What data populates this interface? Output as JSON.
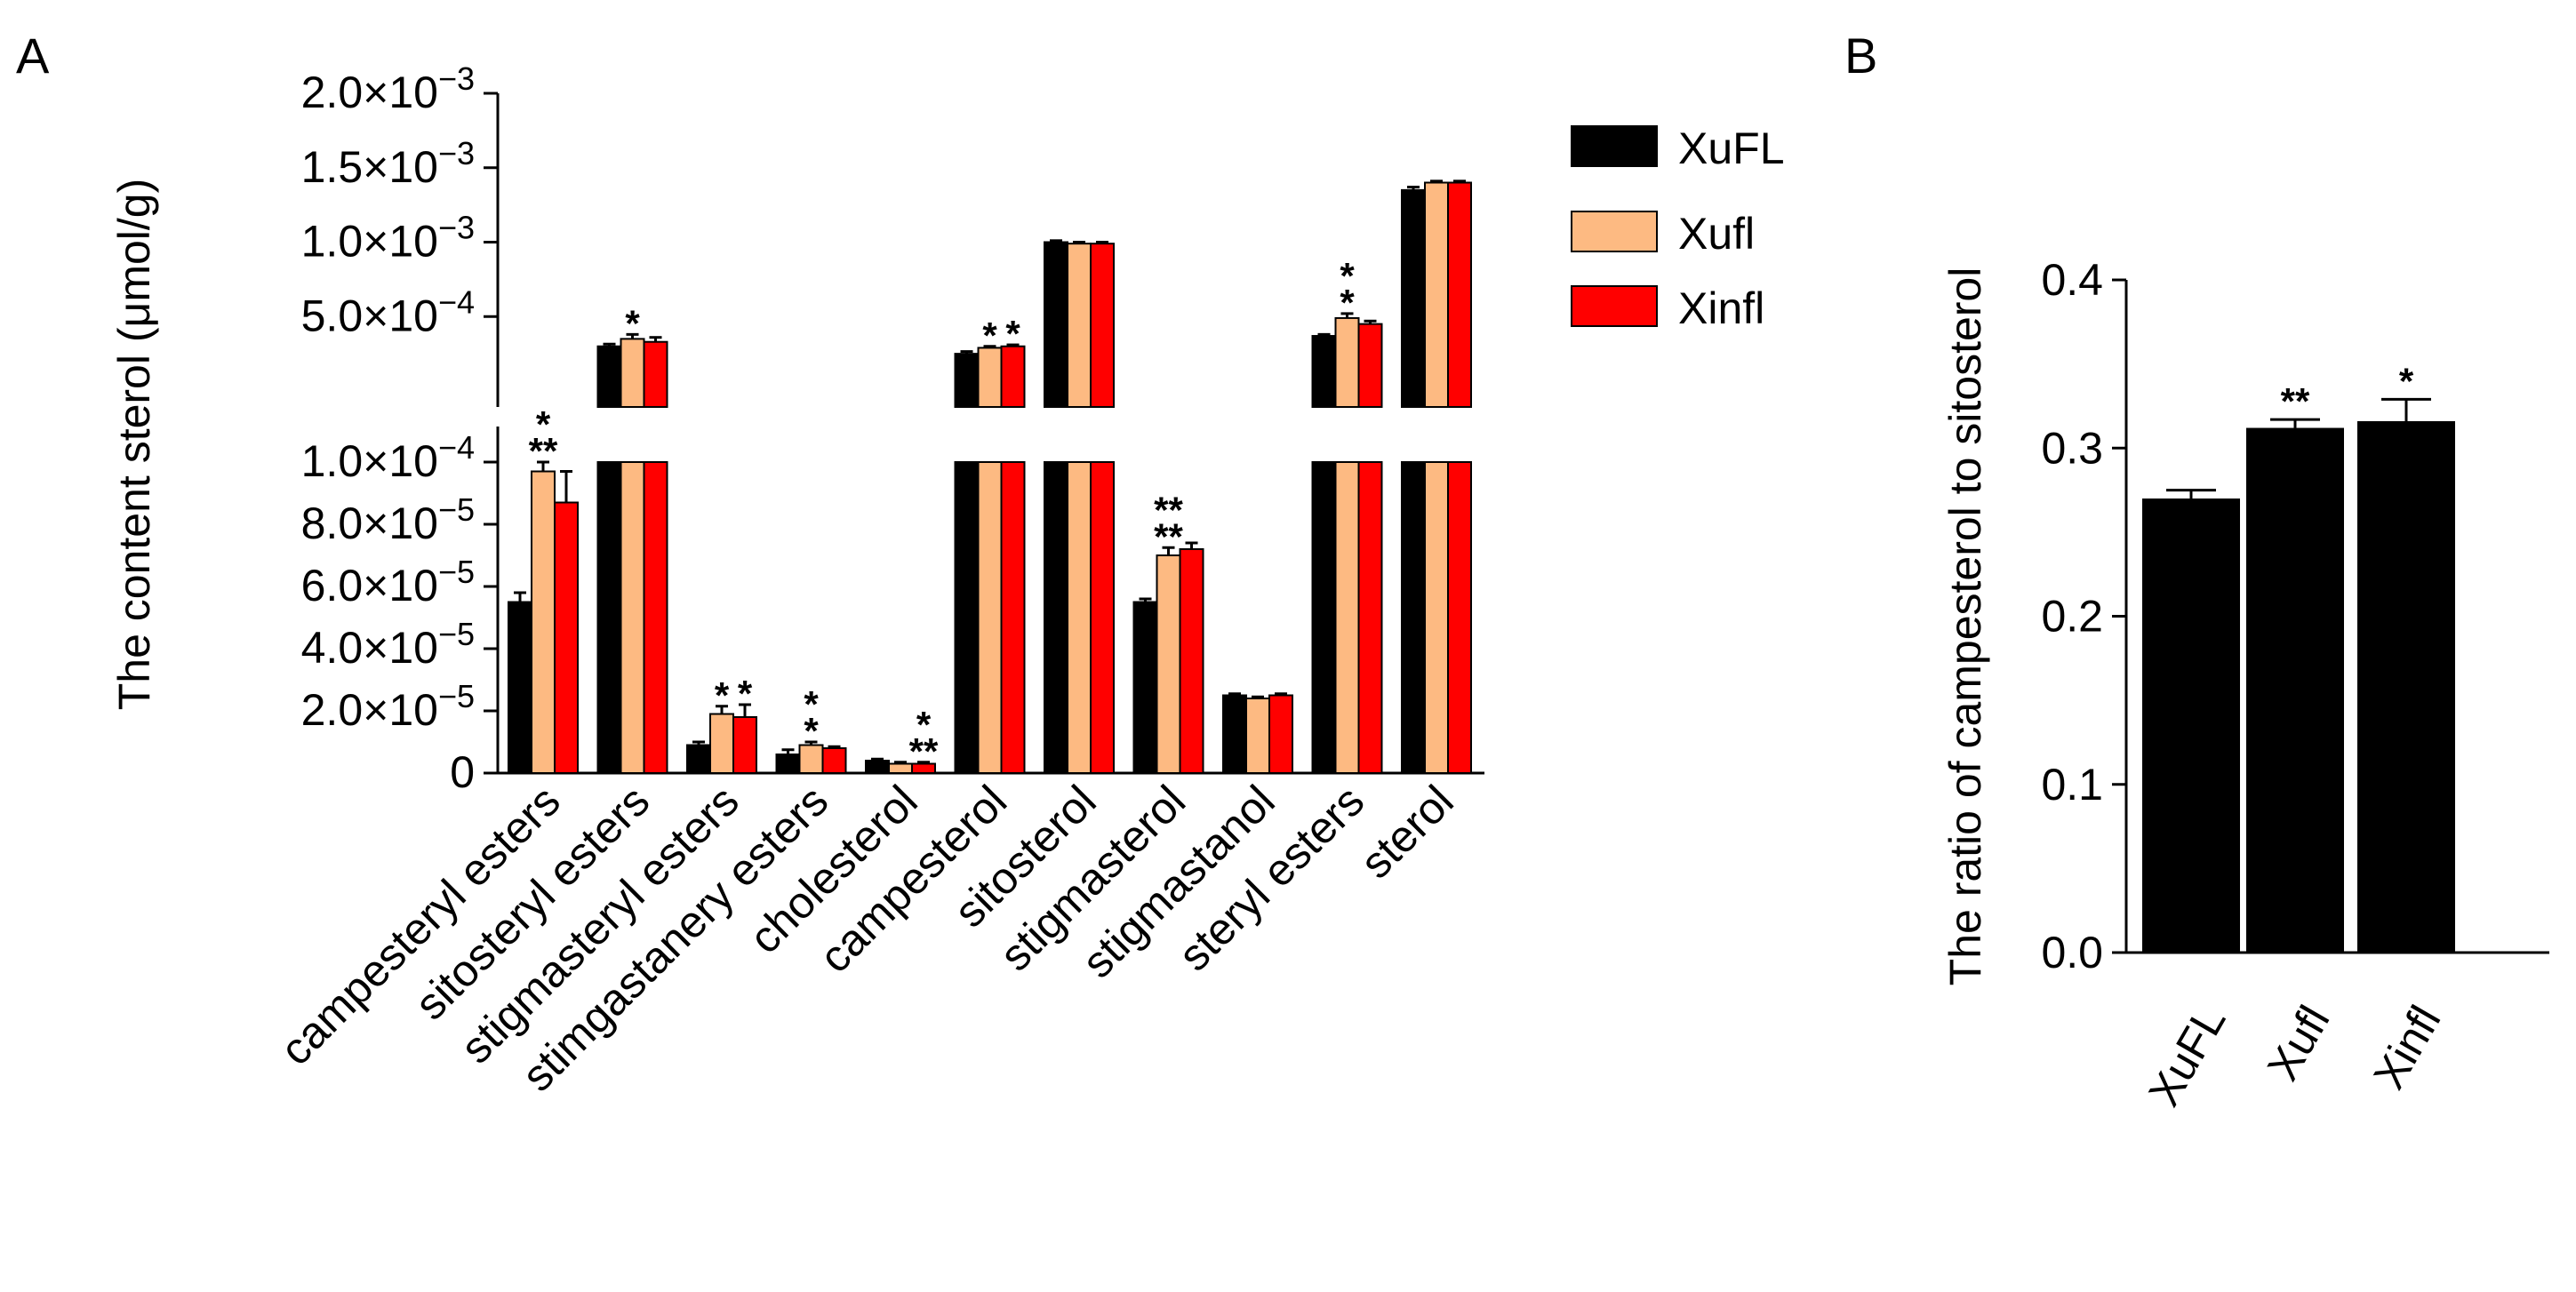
{
  "colors": {
    "XuFL": "#000000",
    "Xufl": "#FDBA82",
    "Xinfl": "#FF0000"
  },
  "chart_data": [
    {
      "panel_label": "A",
      "type": "bar",
      "ylabel": "The content sterol (μmol/g)",
      "legend_position": "top-right",
      "categories": [
        "campesteryl esters",
        "sitosteryl esters",
        "stigmasteryl esters",
        "stimgastanery esters",
        "cholesterol",
        "campesterol",
        "sitosterol",
        "stigmasterol",
        "stigmastanol",
        "steryl esters",
        "sterol"
      ],
      "series": [
        {
          "name": "XuFL",
          "values": [
            5.5e-05,
            0.0003,
            9e-06,
            6e-06,
            4e-06,
            0.00025,
            0.001,
            5.5e-05,
            2.5e-05,
            0.00037,
            0.00135
          ]
        },
        {
          "name": "Xufl",
          "values": [
            9.7e-05,
            0.00035,
            1.9e-05,
            9e-06,
            3e-06,
            0.00029,
            0.00099,
            7e-05,
            2.4e-05,
            0.00049,
            0.0014
          ]
        },
        {
          "name": "Xinfl",
          "values": [
            8.7e-05,
            0.00033,
            1.8e-05,
            8e-06,
            3e-06,
            0.0003,
            0.00099,
            7.2e-05,
            2.5e-05,
            0.00045,
            0.0014
          ]
        }
      ],
      "errors": [
        [
          3e-06,
          1.5e-05,
          1e-06,
          1.5e-06,
          5e-07,
          1.5e-05,
          1e-05,
          1e-06,
          5e-07,
          1e-05,
          2e-05
        ],
        [
          3e-06,
          3e-05,
          2.5e-06,
          1e-06,
          5e-07,
          1e-05,
          1e-05,
          2.5e-06,
          5e-07,
          3e-05,
          1e-05
        ],
        [
          1e-05,
          3e-05,
          4e-06,
          5e-07,
          5e-07,
          1e-05,
          1e-05,
          2e-06,
          5e-07,
          2e-05,
          1e-05
        ]
      ],
      "significance": [
        {
          "cat": 0,
          "above": 1,
          "marks": [
            "*",
            "**"
          ]
        },
        {
          "cat": 1,
          "above": 1,
          "marks": [
            "*"
          ]
        },
        {
          "cat": 2,
          "above": 1,
          "marks": [
            "*"
          ]
        },
        {
          "cat": 2,
          "above": 2,
          "marks": [
            "*"
          ]
        },
        {
          "cat": 3,
          "above": 1,
          "marks": [
            "*",
            "*"
          ]
        },
        {
          "cat": 4,
          "above": 2,
          "marks": [
            "*",
            "**"
          ]
        },
        {
          "cat": 5,
          "above": 1,
          "marks": [
            "*"
          ]
        },
        {
          "cat": 5,
          "above": 2,
          "marks": [
            "*"
          ]
        },
        {
          "cat": 7,
          "above": 1,
          "marks": [
            "**",
            "**"
          ]
        },
        {
          "cat": 9,
          "above": 1,
          "marks": [
            "*",
            "*"
          ]
        }
      ],
      "y_upper": {
        "range": [
          0,
          0.002
        ],
        "ticks": [
          "5.0×10",
          "1.0×10",
          "1.5×10",
          "2.0×10"
        ],
        "tick_values": [
          0.0005,
          0.001,
          0.0015,
          0.002
        ],
        "exponents": [
          "−4",
          "−3",
          "−3",
          "−3"
        ]
      },
      "y_lower": {
        "range": [
          0,
          0.0001
        ],
        "ticks": [
          "0",
          "2.0×10",
          "4.0×10",
          "6.0×10",
          "8.0×10",
          "1.0×10"
        ],
        "tick_values": [
          0,
          2e-05,
          4e-05,
          6e-05,
          8e-05,
          0.0001
        ],
        "exponents": [
          "",
          "−5",
          "−5",
          "−5",
          "−5",
          "−4"
        ]
      }
    },
    {
      "panel_label": "B",
      "type": "bar",
      "ylabel": "The ratio of campesterol to sitosterol",
      "categories": [
        "XuFL",
        "Xufl",
        "Xinfl"
      ],
      "values": [
        0.27,
        0.312,
        0.316
      ],
      "errors": [
        0.005,
        0.005,
        0.013
      ],
      "significance": [
        "",
        "**",
        "*"
      ],
      "ylim": [
        0,
        0.4
      ],
      "ticks": [
        "0.0",
        "0.1",
        "0.2",
        "0.3",
        "0.4"
      ],
      "tick_values": [
        0,
        0.1,
        0.2,
        0.3,
        0.4
      ]
    }
  ]
}
